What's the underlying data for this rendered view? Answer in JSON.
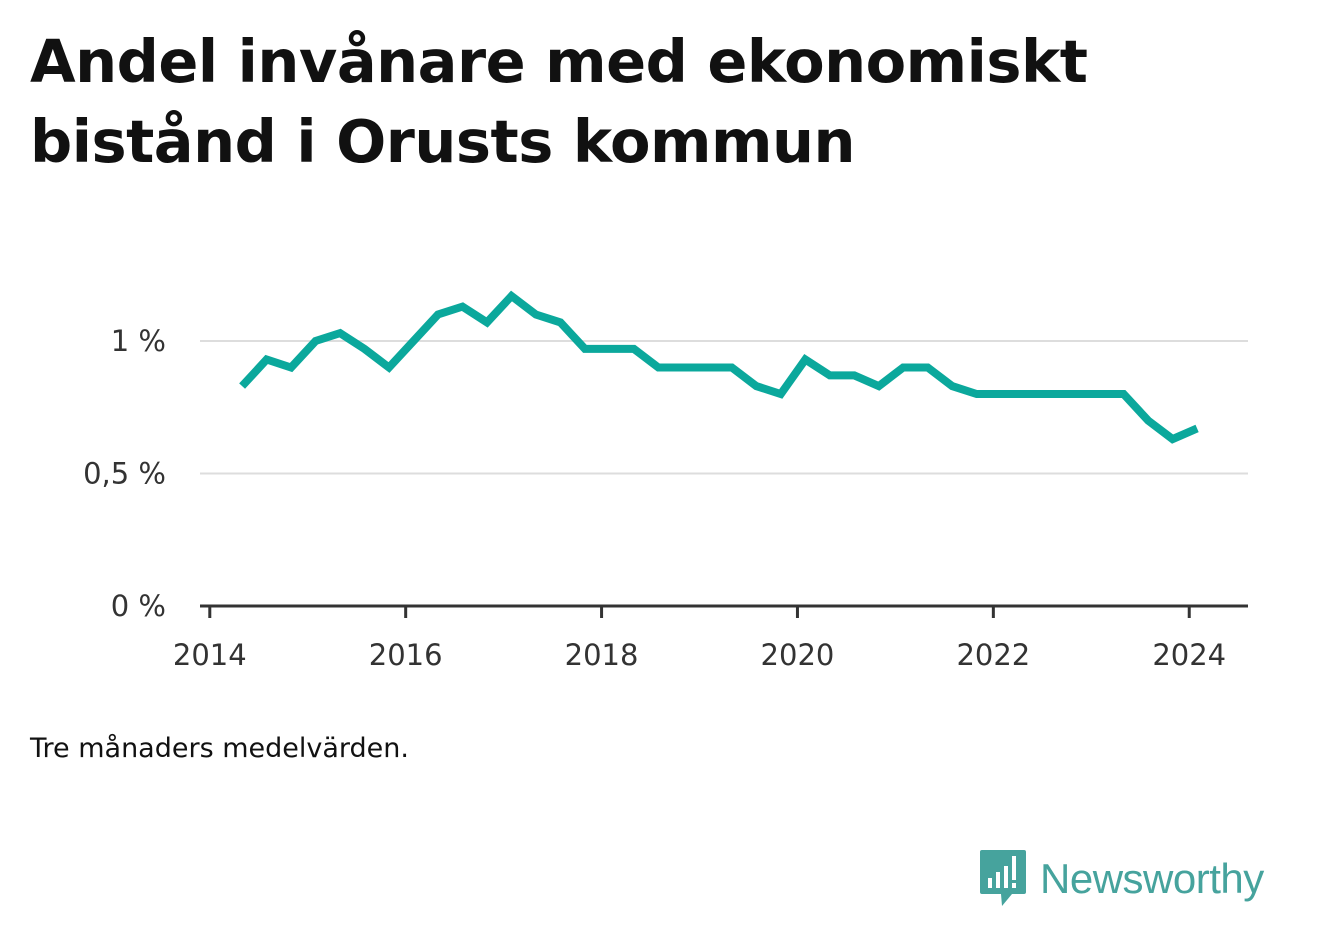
{
  "header": {
    "title": "Andel invånare med ekonomiskt bistånd i Orusts kommun"
  },
  "footer": {
    "note": "Tre månaders medelvärden.",
    "brand": "Newsworthy"
  },
  "colors": {
    "line": "#0ba89c",
    "grid": "#dddddd",
    "axis": "#333333",
    "brand": "#46a39d"
  },
  "icons": {
    "brand": "bar-chart-speech-bubble-icon"
  },
  "chart_data": {
    "type": "line",
    "title": "Andel invånare med ekonomiskt bistånd i Orusts kommun",
    "xlabel": "",
    "ylabel": "",
    "xlim": [
      2013.9,
      2024.6
    ],
    "ylim": [
      0,
      1.25
    ],
    "x_ticks": [
      2014,
      2016,
      2018,
      2020,
      2022,
      2024
    ],
    "x_tick_labels": [
      "2014",
      "2016",
      "2018",
      "2020",
      "2022",
      "2024"
    ],
    "y_ticks": [
      0,
      0.5,
      1
    ],
    "y_tick_labels": [
      "0 %",
      "0,5 %",
      "1 %"
    ],
    "grid": true,
    "legend": "none",
    "series": [
      {
        "x": [
          2014.33,
          2014.58,
          2014.83,
          2015.08,
          2015.33,
          2015.58,
          2015.83,
          2016.08,
          2016.33,
          2016.58,
          2016.83,
          2017.08,
          2017.33,
          2017.58,
          2017.83,
          2018.08,
          2018.33,
          2018.58,
          2018.83,
          2019.08,
          2019.33,
          2019.58,
          2019.83,
          2020.08,
          2020.33,
          2020.58,
          2020.83,
          2021.08,
          2021.33,
          2021.58,
          2021.83,
          2022.08,
          2022.33,
          2022.58,
          2022.83,
          2023.08,
          2023.33,
          2023.58,
          2023.83,
          2024.08
        ],
        "values": [
          0.83,
          0.93,
          0.9,
          1.0,
          1.03,
          0.97,
          0.9,
          1.0,
          1.1,
          1.13,
          1.07,
          1.17,
          1.1,
          1.07,
          0.97,
          0.97,
          0.97,
          0.9,
          0.9,
          0.9,
          0.9,
          0.83,
          0.8,
          0.93,
          0.87,
          0.87,
          0.83,
          0.9,
          0.9,
          0.83,
          0.8,
          0.8,
          0.8,
          0.8,
          0.8,
          0.8,
          0.8,
          0.7,
          0.63,
          0.67
        ]
      }
    ]
  }
}
